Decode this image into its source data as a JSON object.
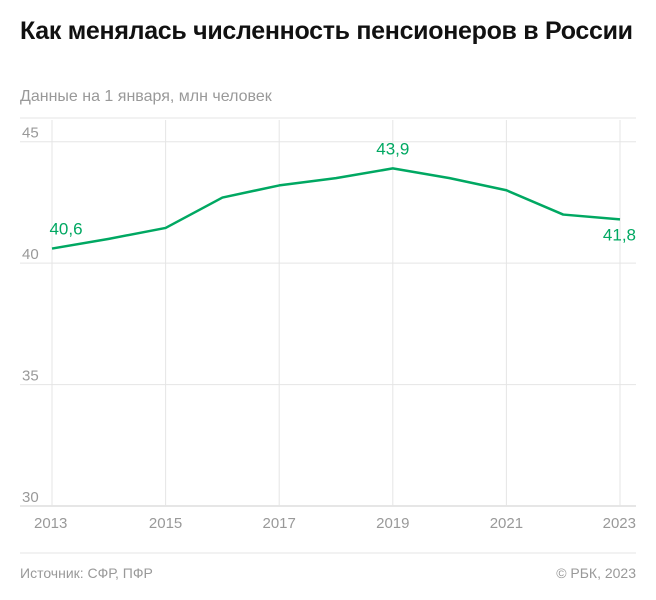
{
  "title": "Как менялась численность пенсионеров в России",
  "subtitle": "Данные на 1 января, млн человек",
  "source": "Источник: СФР, ПФР",
  "copyright": "© РБК, 2023",
  "chart_data": {
    "type": "line",
    "x": [
      2013,
      2014,
      2015,
      2016,
      2017,
      2018,
      2019,
      2020,
      2021,
      2022,
      2023
    ],
    "series": [
      {
        "values": [
          40.6,
          41.0,
          41.45,
          42.7,
          43.2,
          43.5,
          43.9,
          43.5,
          43.0,
          42.0,
          41.8
        ],
        "color": "#00a862"
      }
    ],
    "xticks": [
      "2013",
      "2015",
      "2017",
      "2019",
      "2021",
      "2023"
    ],
    "yticks": [
      "30",
      "35",
      "40",
      "45"
    ],
    "xlim": [
      2013,
      2023
    ],
    "ylim": [
      30,
      45
    ],
    "annotations": [
      {
        "x": 2013,
        "label": "40,6"
      },
      {
        "x": 2019,
        "label": "43,9"
      },
      {
        "x": 2023,
        "label": "41,8"
      }
    ],
    "grid": true,
    "tick_color": "#999999",
    "grid_color": "#e5e5e5"
  }
}
